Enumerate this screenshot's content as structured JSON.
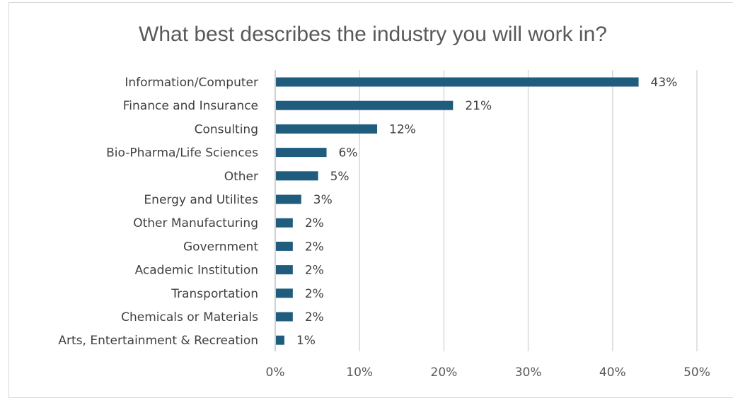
{
  "chart_data": {
    "type": "bar",
    "orientation": "horizontal",
    "title": "What best describes the industry you will work in?",
    "categories": [
      "Information/Computer",
      "Finance and Insurance",
      "Consulting",
      "Bio-Pharma/Life Sciences",
      "Other",
      "Energy and Utilites",
      "Other Manufacturing",
      "Government",
      "Academic Institution",
      "Transportation",
      "Chemicals or Materials",
      "Arts, Entertainment & Recreation"
    ],
    "values": [
      43,
      21,
      12,
      6,
      5,
      3,
      2,
      2,
      2,
      2,
      2,
      1
    ],
    "data_labels": [
      "43%",
      "21%",
      "12%",
      "6%",
      "5%",
      "3%",
      "2%",
      "2%",
      "2%",
      "2%",
      "2%",
      "1%"
    ],
    "x_ticks": [
      "0%",
      "10%",
      "20%",
      "30%",
      "40%",
      "50%"
    ],
    "xlim": [
      0,
      50
    ],
    "xlabel": "",
    "ylabel": "",
    "grid": "vertical",
    "legend": "none",
    "bar_color": "#1f5c7e"
  }
}
